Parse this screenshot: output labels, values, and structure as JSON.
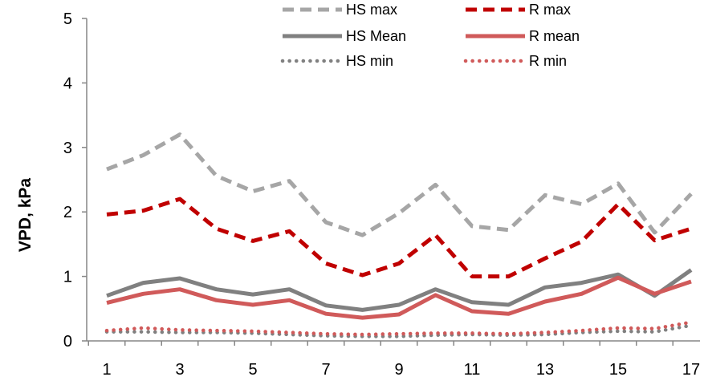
{
  "chart_data": {
    "type": "line",
    "title": "",
    "xlabel": "",
    "ylabel": "VPD, kPa",
    "x": [
      1,
      2,
      3,
      4,
      5,
      6,
      7,
      8,
      9,
      10,
      11,
      12,
      13,
      14,
      15,
      16,
      17
    ],
    "x_tick_labels": [
      "1",
      "3",
      "5",
      "7",
      "9",
      "11",
      "13",
      "15",
      "17"
    ],
    "ylim": [
      0,
      5
    ],
    "y_tick_labels": [
      "0",
      "1",
      "2",
      "3",
      "4",
      "5"
    ],
    "grid": false,
    "legend_position": "top-center",
    "series": [
      {
        "name": "HS max",
        "color": "#a6a6a6",
        "style": "dashed",
        "values": [
          2.66,
          2.88,
          3.2,
          2.56,
          2.32,
          2.48,
          1.84,
          1.64,
          1.98,
          2.42,
          1.78,
          1.72,
          2.26,
          2.12,
          2.44,
          1.68,
          2.28
        ]
      },
      {
        "name": "R max",
        "color": "#c00000",
        "style": "dashed",
        "values": [
          1.96,
          2.02,
          2.2,
          1.74,
          1.55,
          1.7,
          1.2,
          1.02,
          1.2,
          1.64,
          1.0,
          1.0,
          1.28,
          1.54,
          2.12,
          1.56,
          1.74
        ]
      },
      {
        "name": "HS Mean",
        "color": "#808080",
        "style": "solid",
        "values": [
          0.7,
          0.9,
          0.97,
          0.8,
          0.72,
          0.8,
          0.55,
          0.48,
          0.56,
          0.8,
          0.6,
          0.56,
          0.83,
          0.9,
          1.03,
          0.7,
          1.1
        ]
      },
      {
        "name": "R mean",
        "color": "#d05a5a",
        "style": "solid",
        "values": [
          0.59,
          0.73,
          0.8,
          0.63,
          0.56,
          0.63,
          0.42,
          0.36,
          0.41,
          0.71,
          0.46,
          0.42,
          0.61,
          0.73,
          0.98,
          0.73,
          0.92
        ]
      },
      {
        "name": "HS min",
        "color": "#808080",
        "style": "dotted",
        "values": [
          0.14,
          0.14,
          0.13,
          0.13,
          0.12,
          0.1,
          0.08,
          0.07,
          0.07,
          0.09,
          0.1,
          0.09,
          0.1,
          0.13,
          0.15,
          0.14,
          0.24
        ]
      },
      {
        "name": "R min",
        "color": "#d05a5a",
        "style": "dotted",
        "values": [
          0.16,
          0.2,
          0.17,
          0.16,
          0.15,
          0.13,
          0.11,
          0.1,
          0.11,
          0.12,
          0.12,
          0.11,
          0.13,
          0.16,
          0.2,
          0.19,
          0.29
        ]
      }
    ]
  }
}
